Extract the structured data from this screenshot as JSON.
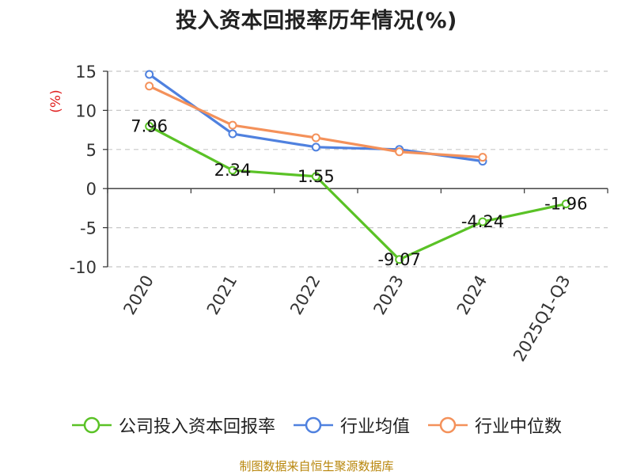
{
  "chart_data": {
    "type": "line",
    "title": "投入资本回报率历年情况(%)",
    "ylabel": "(%)",
    "xlabel": "",
    "categories": [
      "2020",
      "2021",
      "2022",
      "2023",
      "2024",
      "2025Q1-Q3"
    ],
    "ylim": [
      -10,
      15
    ],
    "yticks": [
      15,
      10,
      5,
      0,
      -5,
      -10
    ],
    "grid": true,
    "legend_position": "bottom",
    "series": [
      {
        "name": "公司投入资本回报率",
        "color": "#5ac226",
        "values": [
          7.96,
          2.34,
          1.55,
          -9.07,
          -4.24,
          -1.96
        ],
        "labels": [
          "7.96",
          "2.34",
          "1.55",
          "-9.07",
          "-4.24",
          "-1.96"
        ]
      },
      {
        "name": "行业均值",
        "color": "#4f81df",
        "values": [
          14.6,
          7.0,
          5.3,
          5.0,
          3.5,
          null
        ],
        "labels": null
      },
      {
        "name": "行业中位数",
        "color": "#f4915a",
        "values": [
          13.1,
          8.1,
          6.5,
          4.7,
          4.0,
          null
        ],
        "labels": null
      }
    ]
  },
  "source_note": "制图数据来自恒生聚源数据库"
}
